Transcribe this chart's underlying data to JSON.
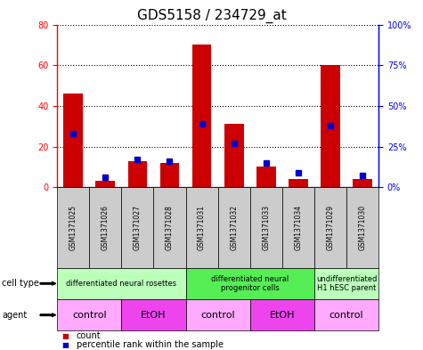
{
  "title": "GDS5158 / 234729_at",
  "samples": [
    "GSM1371025",
    "GSM1371026",
    "GSM1371027",
    "GSM1371028",
    "GSM1371031",
    "GSM1371032",
    "GSM1371033",
    "GSM1371034",
    "GSM1371029",
    "GSM1371030"
  ],
  "counts": [
    46,
    3,
    13,
    12,
    70,
    31,
    10,
    4,
    60,
    4
  ],
  "percentiles": [
    33,
    6,
    17,
    16,
    39,
    27,
    15,
    9,
    38,
    7
  ],
  "ylim_left": [
    0,
    80
  ],
  "ylim_right": [
    0,
    100
  ],
  "yticks_left": [
    0,
    20,
    40,
    60,
    80
  ],
  "ytick_labels_left": [
    "0",
    "20",
    "40",
    "60",
    "80"
  ],
  "yticks_right": [
    0,
    25,
    50,
    75,
    100
  ],
  "ytick_labels_right": [
    "0%",
    "25%",
    "50%",
    "75%",
    "100%"
  ],
  "cell_type_groups": [
    {
      "label": "differentiated neural rosettes",
      "start": 0,
      "end": 3,
      "color": "#bbffbb"
    },
    {
      "label": "differentiated neural\nprogenitor cells",
      "start": 4,
      "end": 7,
      "color": "#55ee55"
    },
    {
      "label": "undifferentiated\nH1 hESC parent",
      "start": 8,
      "end": 9,
      "color": "#bbffbb"
    }
  ],
  "agent_groups": [
    {
      "label": "control",
      "start": 0,
      "end": 1,
      "color": "#ffaaff"
    },
    {
      "label": "EtOH",
      "start": 2,
      "end": 3,
      "color": "#ee44ee"
    },
    {
      "label": "control",
      "start": 4,
      "end": 5,
      "color": "#ffaaff"
    },
    {
      "label": "EtOH",
      "start": 6,
      "end": 7,
      "color": "#ee44ee"
    },
    {
      "label": "control",
      "start": 8,
      "end": 9,
      "color": "#ffaaff"
    }
  ],
  "bar_color": "#cc0000",
  "dot_color": "#0000cc",
  "sample_bg": "#cccccc",
  "plot_bg": "#ffffff",
  "title_fontsize": 11,
  "tick_fontsize": 7,
  "sample_fontsize": 5.5,
  "cell_fontsize": 6,
  "agent_fontsize": 8,
  "rowlabel_fontsize": 7,
  "legend_fontsize": 7
}
